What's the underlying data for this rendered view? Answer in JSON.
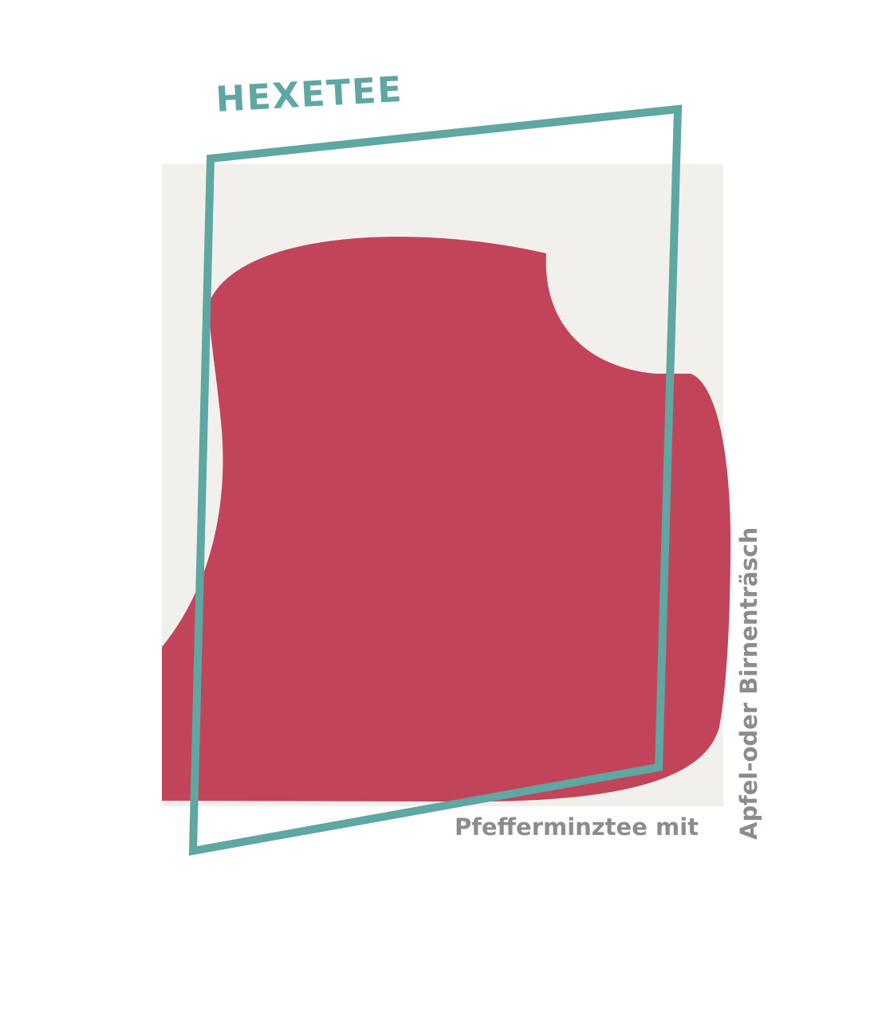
{
  "title": "HEXETEE",
  "subtitle": {
    "line1": "Pfefferminztee mit",
    "line2": "Apfel-oder Birnenträsch"
  },
  "colors": {
    "background": "#ffffff",
    "panel": "#f2f0ec",
    "blob": "#c2445a",
    "frame": "#5ea7a2",
    "text_accent": "#5ea7a2",
    "text_muted": "#8f8b8c"
  }
}
